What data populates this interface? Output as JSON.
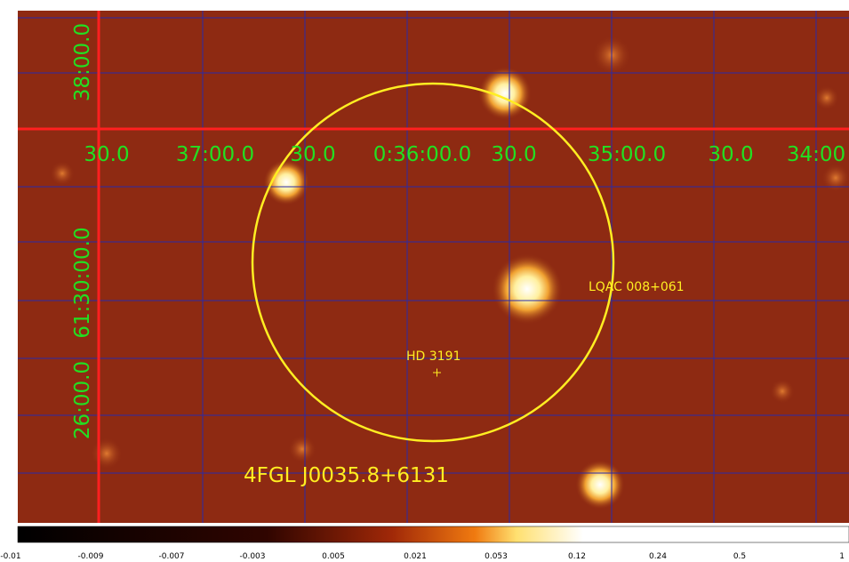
{
  "image": {
    "x_axis_labels": [
      "30.0",
      "37:00.0",
      "30.0",
      "0:36:00.0",
      "30.0",
      "35:00.0",
      "30.0",
      "34:00"
    ],
    "y_axis_labels": [
      "38:00.0",
      "61:30:00.0",
      "26:00.0"
    ],
    "annotations": {
      "source1": "LQAC 008+061",
      "source2": "HD 3191",
      "region": "4FGL J0035.8+6131"
    }
  },
  "colorbar": {
    "labels": [
      "-0.01",
      "-0.009",
      "-0.007",
      "-0.003",
      "0.005",
      "0.021",
      "0.053",
      "0.12",
      "0.24",
      "0.5",
      "1"
    ]
  }
}
